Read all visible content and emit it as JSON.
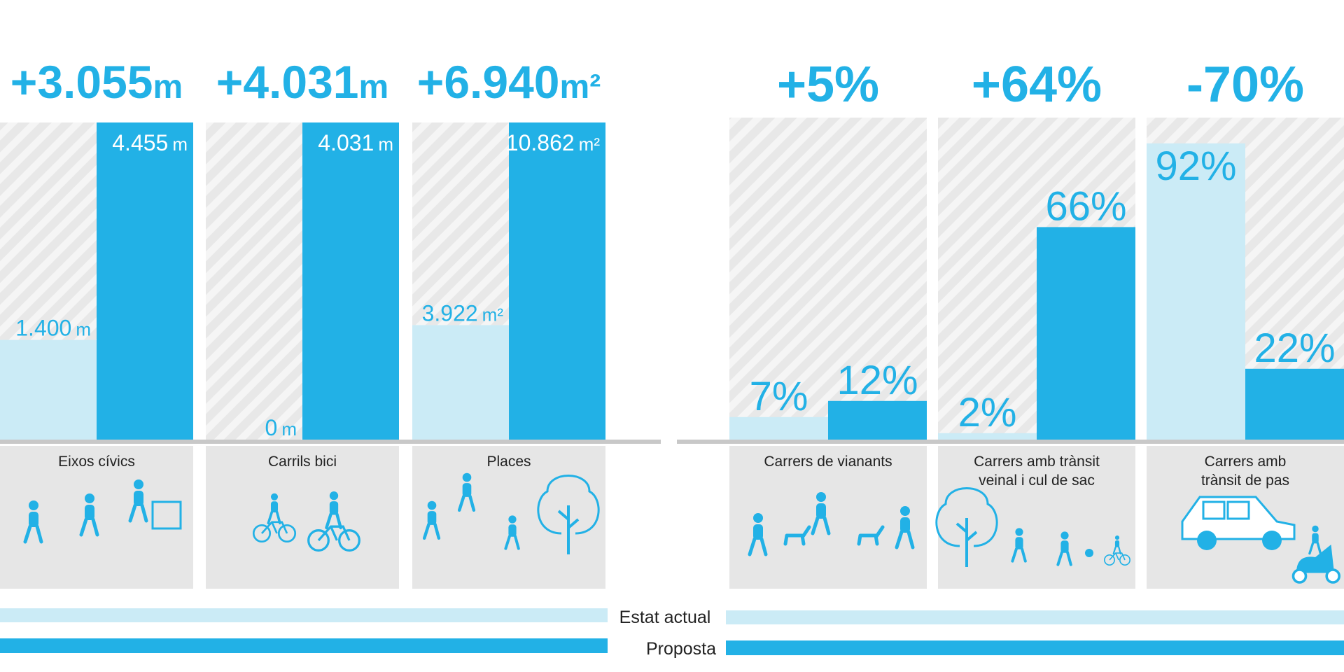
{
  "colors": {
    "current": "#cbebf6",
    "proposal": "#22b1e6",
    "hatch_bg": "#e8e8e8",
    "hatch_line": "#ffffff",
    "panel": "#e6e6e6",
    "baseline": "#c8c8c8",
    "icon": "#22b1e6"
  },
  "chart_data": [
    {
      "type": "bar",
      "unit": "m / m²",
      "series": [
        {
          "name": "Estat actual",
          "values": [
            1400,
            0,
            3922
          ]
        },
        {
          "name": "Proposta",
          "values": [
            4455,
            4031,
            10862
          ]
        }
      ],
      "categories": [
        {
          "label": "Eixos cívics",
          "headline_value": "+3.055",
          "headline_unit": "m",
          "current_label": "1.400",
          "proposal_label": "4.455",
          "label_unit": "m",
          "current": 1400,
          "proposal": 4455,
          "max": 4455,
          "icon": "walking-people-icon"
        },
        {
          "label": "Carrils bici",
          "headline_value": "+4.031",
          "headline_unit": "m",
          "current_label": "0",
          "proposal_label": "4.031",
          "label_unit": "m",
          "current": 0,
          "proposal": 4031,
          "max": 4031,
          "icon": "cyclists-icon"
        },
        {
          "label": "Places",
          "headline_value": "+6.940",
          "headline_unit": "m²",
          "current_label": "3.922",
          "proposal_label": "10.862",
          "label_unit": "m²",
          "current": 3922,
          "proposal": 10862,
          "max": 10862,
          "icon": "children-playing-tree-icon"
        }
      ]
    },
    {
      "type": "bar",
      "unit": "%",
      "ylim": [
        0,
        100
      ],
      "series": [
        {
          "name": "Estat actual",
          "values": [
            7,
            2,
            92
          ]
        },
        {
          "name": "Proposta",
          "values": [
            12,
            66,
            22
          ]
        }
      ],
      "categories": [
        {
          "label_lines": [
            "Carrers de vianants"
          ],
          "headline": "+5%",
          "current": 7,
          "proposal": 12,
          "current_label": "7%",
          "proposal_label": "12%",
          "icon": "pedestrians-dogs-icon"
        },
        {
          "label_lines": [
            "Carrers amb trànsit",
            "veinal i cul de sac"
          ],
          "headline": "+64%",
          "current": 2,
          "proposal": 66,
          "current_label": "2%",
          "proposal_label": "66%",
          "icon": "tree-children-playing-icon"
        },
        {
          "label_lines": [
            "Carrers amb",
            "trànsit de pas"
          ],
          "headline": "-70%",
          "current": 92,
          "proposal": 22,
          "current_label": "92%",
          "proposal_label": "22%",
          "icon": "car-scooter-icon"
        }
      ]
    }
  ],
  "legend": {
    "current_label": "Estat actual",
    "proposal_label": "Proposta"
  }
}
